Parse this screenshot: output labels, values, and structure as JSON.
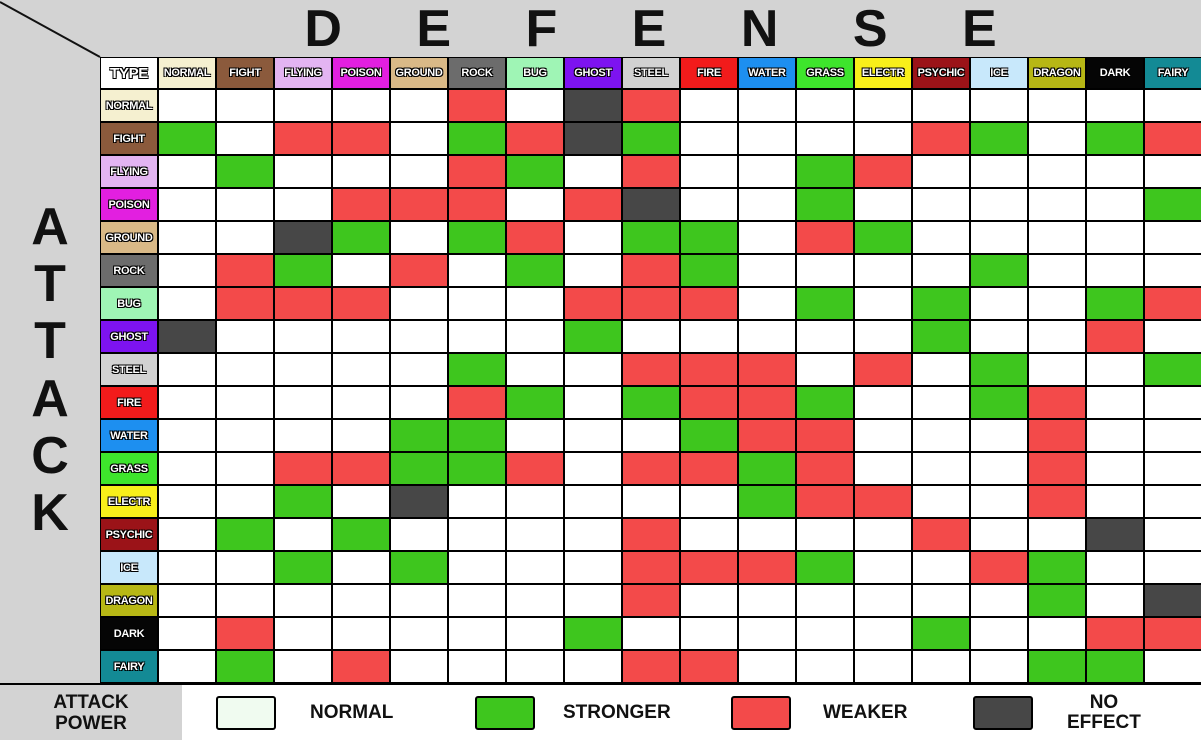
{
  "defense_title": "D E F E N S E",
  "attack_letters": [
    "A",
    "T",
    "T",
    "A",
    "C",
    "K"
  ],
  "corner_label": "TYPE",
  "defense_types": [
    {
      "label": "NORMAL",
      "color": "#f5f0d0"
    },
    {
      "label": "FIGHT",
      "color": "#8b5a3c"
    },
    {
      "label": "FLYING",
      "color": "#e3b4f2"
    },
    {
      "label": "POISON",
      "color": "#e21fe0"
    },
    {
      "label": "GROUND",
      "color": "#d9b987"
    },
    {
      "label": "ROCK",
      "color": "#6c6c6c"
    },
    {
      "label": "BUG",
      "color": "#9ff5b5"
    },
    {
      "label": "GHOST",
      "color": "#7d13f0"
    },
    {
      "label": "STEEL",
      "color": "#d2d2d2"
    },
    {
      "label": "FIRE",
      "color": "#f21b1b"
    },
    {
      "label": "WATER",
      "color": "#1d8ff0"
    },
    {
      "label": "GRASS",
      "color": "#3ee52c"
    },
    {
      "label": "ELECTR",
      "color": "#f8ef1a"
    },
    {
      "label": "PSYCHIC",
      "color": "#9b1318"
    },
    {
      "label": "ICE",
      "color": "#c8e8fb"
    },
    {
      "label": "DRAGON",
      "color": "#b7b715"
    },
    {
      "label": "DARK",
      "color": "#050505"
    },
    {
      "label": "FAIRY",
      "color": "#138a95"
    }
  ],
  "attack_types": [
    {
      "label": "NORMAL",
      "color": "#f5f0d0"
    },
    {
      "label": "FIGHT",
      "color": "#8b5a3c"
    },
    {
      "label": "FLYING",
      "color": "#e3b4f2"
    },
    {
      "label": "POISON",
      "color": "#e21fe0"
    },
    {
      "label": "GROUND",
      "color": "#d9b987"
    },
    {
      "label": "ROCK",
      "color": "#6c6c6c"
    },
    {
      "label": "BUG",
      "color": "#9ff5b5"
    },
    {
      "label": "GHOST",
      "color": "#7d13f0"
    },
    {
      "label": "STEEL",
      "color": "#d2d2d2"
    },
    {
      "label": "FIRE",
      "color": "#f21b1b"
    },
    {
      "label": "WATER",
      "color": "#1d8ff0"
    },
    {
      "label": "GRASS",
      "color": "#3ee52c"
    },
    {
      "label": "ELECTR",
      "color": "#f8ef1a"
    },
    {
      "label": "PSYCHIC",
      "color": "#9b1318"
    },
    {
      "label": "ICE",
      "color": "#c8e8fb"
    },
    {
      "label": "DRAGON",
      "color": "#b7b715"
    },
    {
      "label": "DARK",
      "color": "#050505"
    },
    {
      "label": "FAIRY",
      "color": "#138a95"
    }
  ],
  "effect_colors": {
    "N": "#ffffff",
    "S": "#3ec61e",
    "W": "#f34a4a",
    "X": "#474747"
  },
  "matrix": [
    "NNNNNWNXWNNNNNNNNN",
    "SNWWNSWXSNNNNWSNSW",
    "NSNNNWSNWNNSWNNNNN",
    "NNNWWWNWXNNSNNNNNS",
    "NNXSNSWNSSNWSNNNNN",
    "NWSNWNSNWSNNNNSNNN",
    "NWWWNNNWWWNSNSNNSW",
    "XNNNNNNSNNNNNSNNWN",
    "NNNNNSNNWWWNWNSNNS",
    "NNNNNWSNSWWSNNSWNN",
    "NNNNSSNNNSWWNNNWNN",
    "NNWWSSWNWWSWNNNWNN",
    "NNSNXNNNNNSWWNNWNN",
    "NSNSNNNNWNNNNWNNXN",
    "NNSNSNNNWWWSNNWSNN",
    "NNNNNNNNWNNNNNNSNX",
    "NWNNNNNSNNNNNSNNWW",
    "NSNWNNNNWWNNNNNSSN"
  ],
  "legend": {
    "title_line1": "ATTACK",
    "title_line2": "POWER",
    "items": [
      {
        "key": "N",
        "label": "NORMAL",
        "swatch_color": "#f0fbf0"
      },
      {
        "key": "S",
        "label": "STRONGER",
        "swatch_color": "#3ec61e"
      },
      {
        "key": "W",
        "label": "WEAKER",
        "swatch_color": "#f34a4a"
      },
      {
        "key": "X",
        "label_line1": "NO",
        "label_line2": "EFFECT",
        "swatch_color": "#474747"
      }
    ]
  }
}
